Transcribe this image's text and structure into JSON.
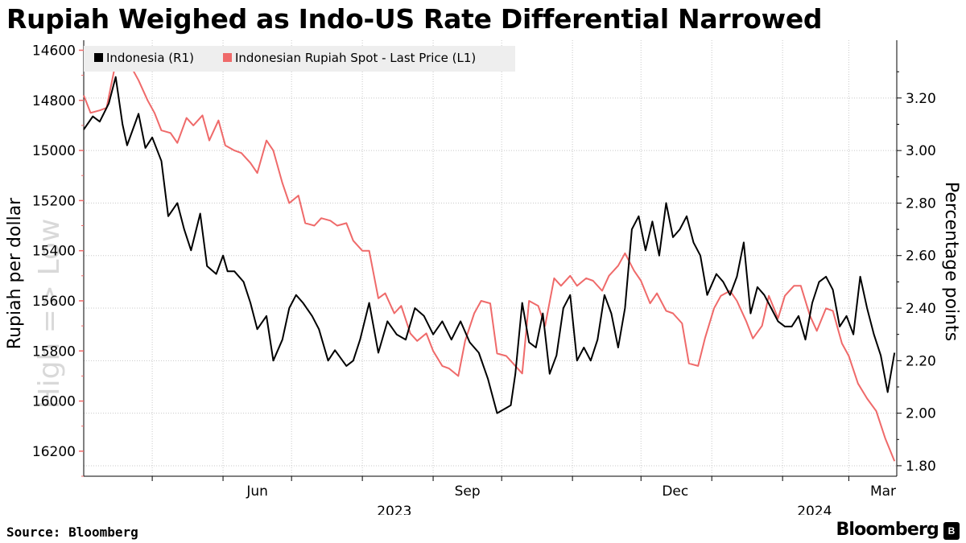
{
  "title": "Rupiah Weighed as Indo-US Rate Differential Narrowed",
  "source": "Source: Bloomberg",
  "brand": "Bloomberg",
  "brand_badge": "B",
  "colors": {
    "indonesia": "#000000",
    "rupiah": "#ef6a6a",
    "grid": "#c8c8c8",
    "legend_bg": "#eeeeee"
  },
  "chart_data": {
    "type": "line",
    "title": "Rupiah Weighed as Indo-US Rate Differential Narrowed",
    "watermark": "High => Low",
    "legend": [
      "Indonesia (R1)",
      "Indonesian Rupiah Spot - Last Price (L1)"
    ],
    "x_range": [
      "2023-04-01",
      "2024-03-22"
    ],
    "x_ticks": [
      {
        "date": "2023-05-01",
        "label": ""
      },
      {
        "date": "2023-06-01",
        "label": "Jun"
      },
      {
        "date": "2023-07-01",
        "label": ""
      },
      {
        "date": "2023-08-01",
        "label": ""
      },
      {
        "date": "2023-09-01",
        "label": "Sep"
      },
      {
        "date": "2023-10-01",
        "label": ""
      },
      {
        "date": "2023-11-01",
        "label": ""
      },
      {
        "date": "2023-12-01",
        "label": "Dec"
      },
      {
        "date": "2024-01-01",
        "label": ""
      },
      {
        "date": "2024-02-01",
        "label": ""
      },
      {
        "date": "2024-03-01",
        "label": "Mar"
      }
    ],
    "year_labels": [
      {
        "date": "2023-08-15",
        "label": "2023"
      },
      {
        "date": "2024-02-15",
        "label": "2024"
      }
    ],
    "left_axis": {
      "label": "Rupiah per dollar",
      "inverted": true,
      "ylim": [
        14560,
        16300
      ],
      "ticks": [
        {
          "value": 14600,
          "label": "14600"
        },
        {
          "value": 14800,
          "label": "14800"
        },
        {
          "value": 15000,
          "label": "15000"
        },
        {
          "value": 15200,
          "label": "15200"
        },
        {
          "value": 15400,
          "label": "15400"
        },
        {
          "value": 15600,
          "label": "15600"
        },
        {
          "value": 15800,
          "label": "15800"
        },
        {
          "value": 16000,
          "label": "16000"
        },
        {
          "value": 16200,
          "label": "16200"
        }
      ]
    },
    "right_axis": {
      "label": "Percentage points",
      "ylim": [
        1.76,
        3.42
      ],
      "ticks": [
        {
          "value": 1.8,
          "label": "1.80"
        },
        {
          "value": 2.0,
          "label": "2.00"
        },
        {
          "value": 2.2,
          "label": "2.20"
        },
        {
          "value": 2.4,
          "label": "2.40"
        },
        {
          "value": 2.6,
          "label": "2.60"
        },
        {
          "value": 2.8,
          "label": "2.80"
        },
        {
          "value": 3.0,
          "label": "3.00"
        },
        {
          "value": 3.2,
          "label": "3.20"
        }
      ]
    },
    "series": [
      {
        "name": "Indonesia (R1)",
        "axis": "right",
        "x": [
          "2023-04-01",
          "2023-04-05",
          "2023-04-08",
          "2023-04-12",
          "2023-04-15",
          "2023-04-18",
          "2023-04-20",
          "2023-04-25",
          "2023-04-28",
          "2023-05-01",
          "2023-05-05",
          "2023-05-08",
          "2023-05-12",
          "2023-05-15",
          "2023-05-18",
          "2023-05-22",
          "2023-05-25",
          "2023-05-29",
          "2023-06-01",
          "2023-06-03",
          "2023-06-06",
          "2023-06-10",
          "2023-06-13",
          "2023-06-16",
          "2023-06-20",
          "2023-06-23",
          "2023-06-27",
          "2023-06-30",
          "2023-07-03",
          "2023-07-06",
          "2023-07-10",
          "2023-07-13",
          "2023-07-17",
          "2023-07-20",
          "2023-07-25",
          "2023-07-28",
          "2023-07-31",
          "2023-08-04",
          "2023-08-08",
          "2023-08-12",
          "2023-08-16",
          "2023-08-20",
          "2023-08-24",
          "2023-08-28",
          "2023-09-01",
          "2023-09-05",
          "2023-09-09",
          "2023-09-13",
          "2023-09-17",
          "2023-09-21",
          "2023-09-25",
          "2023-09-29",
          "2023-10-03",
          "2023-10-05",
          "2023-10-07",
          "2023-10-10",
          "2023-10-13",
          "2023-10-16",
          "2023-10-19",
          "2023-10-22",
          "2023-10-25",
          "2023-10-28",
          "2023-10-31",
          "2023-11-03",
          "2023-11-06",
          "2023-11-09",
          "2023-11-12",
          "2023-11-15",
          "2023-11-18",
          "2023-11-21",
          "2023-11-24",
          "2023-11-27",
          "2023-11-30",
          "2023-12-03",
          "2023-12-06",
          "2023-12-09",
          "2023-12-12",
          "2023-12-15",
          "2023-12-18",
          "2023-12-21",
          "2023-12-24",
          "2023-12-27",
          "2023-12-30",
          "2024-01-03",
          "2024-01-06",
          "2024-01-09",
          "2024-01-12",
          "2024-01-15",
          "2024-01-18",
          "2024-01-21",
          "2024-01-24",
          "2024-01-27",
          "2024-01-30",
          "2024-02-02",
          "2024-02-05",
          "2024-02-08",
          "2024-02-11",
          "2024-02-14",
          "2024-02-17",
          "2024-02-20",
          "2024-02-23",
          "2024-02-26",
          "2024-02-29",
          "2024-03-03",
          "2024-03-06",
          "2024-03-09",
          "2024-03-12",
          "2024-03-15",
          "2024-03-18",
          "2024-03-21"
        ],
        "values": [
          3.08,
          3.13,
          3.11,
          3.18,
          3.28,
          3.1,
          3.02,
          3.14,
          3.01,
          3.05,
          2.96,
          2.75,
          2.8,
          2.7,
          2.62,
          2.76,
          2.56,
          2.53,
          2.6,
          2.54,
          2.54,
          2.5,
          2.42,
          2.32,
          2.37,
          2.2,
          2.28,
          2.4,
          2.45,
          2.42,
          2.37,
          2.32,
          2.2,
          2.24,
          2.18,
          2.2,
          2.28,
          2.42,
          2.23,
          2.35,
          2.3,
          2.28,
          2.4,
          2.37,
          2.3,
          2.35,
          2.28,
          2.35,
          2.27,
          2.23,
          2.13,
          2.0,
          2.02,
          2.03,
          2.15,
          2.42,
          2.27,
          2.25,
          2.38,
          2.15,
          2.22,
          2.4,
          2.45,
          2.2,
          2.25,
          2.2,
          2.28,
          2.45,
          2.38,
          2.25,
          2.4,
          2.7,
          2.75,
          2.62,
          2.73,
          2.6,
          2.8,
          2.67,
          2.7,
          2.75,
          2.65,
          2.6,
          2.45,
          2.53,
          2.5,
          2.45,
          2.52,
          2.65,
          2.38,
          2.48,
          2.45,
          2.4,
          2.35,
          2.33,
          2.33,
          2.37,
          2.28,
          2.42,
          2.5,
          2.52,
          2.47,
          2.33,
          2.37,
          2.3,
          2.52,
          2.4,
          2.3,
          2.22,
          2.08,
          2.23
        ]
      },
      {
        "name": "Indonesian Rupiah Spot - Last Price (L1)",
        "axis": "left",
        "x": [
          "2023-04-01",
          "2023-04-04",
          "2023-04-08",
          "2023-04-11",
          "2023-04-15",
          "2023-04-18",
          "2023-04-22",
          "2023-04-25",
          "2023-04-29",
          "2023-05-02",
          "2023-05-05",
          "2023-05-09",
          "2023-05-12",
          "2023-05-16",
          "2023-05-19",
          "2023-05-23",
          "2023-05-26",
          "2023-05-30",
          "2023-06-02",
          "2023-06-06",
          "2023-06-09",
          "2023-06-13",
          "2023-06-16",
          "2023-06-20",
          "2023-06-23",
          "2023-06-27",
          "2023-06-30",
          "2023-07-04",
          "2023-07-07",
          "2023-07-11",
          "2023-07-14",
          "2023-07-18",
          "2023-07-21",
          "2023-07-25",
          "2023-07-28",
          "2023-08-01",
          "2023-08-04",
          "2023-08-08",
          "2023-08-11",
          "2023-08-15",
          "2023-08-18",
          "2023-08-22",
          "2023-08-25",
          "2023-08-29",
          "2023-09-01",
          "2023-09-05",
          "2023-09-08",
          "2023-09-12",
          "2023-09-15",
          "2023-09-19",
          "2023-09-22",
          "2023-09-26",
          "2023-09-29",
          "2023-10-03",
          "2023-10-06",
          "2023-10-10",
          "2023-10-13",
          "2023-10-17",
          "2023-10-20",
          "2023-10-24",
          "2023-10-27",
          "2023-10-31",
          "2023-11-03",
          "2023-11-07",
          "2023-11-10",
          "2023-11-14",
          "2023-11-17",
          "2023-11-21",
          "2023-11-24",
          "2023-11-28",
          "2023-12-01",
          "2023-12-05",
          "2023-12-08",
          "2023-12-12",
          "2023-12-15",
          "2023-12-19",
          "2023-12-22",
          "2023-12-26",
          "2023-12-29",
          "2024-01-02",
          "2024-01-05",
          "2024-01-09",
          "2024-01-12",
          "2024-01-16",
          "2024-01-19",
          "2024-01-23",
          "2024-01-26",
          "2024-01-30",
          "2024-02-02",
          "2024-02-06",
          "2024-02-09",
          "2024-02-13",
          "2024-02-16",
          "2024-02-20",
          "2024-02-23",
          "2024-02-27",
          "2024-03-01",
          "2024-03-05",
          "2024-03-09",
          "2024-03-13",
          "2024-03-17",
          "2024-03-21"
        ],
        "values": [
          14780,
          14850,
          14840,
          14830,
          14650,
          14680,
          14670,
          14720,
          14800,
          14850,
          14920,
          14930,
          14970,
          14870,
          14900,
          14860,
          14960,
          14880,
          14980,
          15000,
          15010,
          15050,
          15090,
          14960,
          15000,
          15130,
          15210,
          15180,
          15290,
          15300,
          15270,
          15280,
          15300,
          15290,
          15360,
          15400,
          15400,
          15590,
          15570,
          15650,
          15620,
          15730,
          15760,
          15730,
          15800,
          15860,
          15870,
          15900,
          15760,
          15650,
          15600,
          15610,
          15810,
          15820,
          15850,
          15890,
          15600,
          15620,
          15700,
          15510,
          15540,
          15500,
          15540,
          15510,
          15520,
          15560,
          15500,
          15460,
          15410,
          15480,
          15520,
          15610,
          15570,
          15640,
          15650,
          15690,
          15850,
          15860,
          15750,
          15630,
          15580,
          15560,
          15600,
          15680,
          15750,
          15700,
          15580,
          15670,
          15580,
          15540,
          15540,
          15660,
          15720,
          15630,
          15640,
          15770,
          15820,
          15930,
          15990,
          16040,
          16150,
          16240
        ]
      }
    ]
  }
}
